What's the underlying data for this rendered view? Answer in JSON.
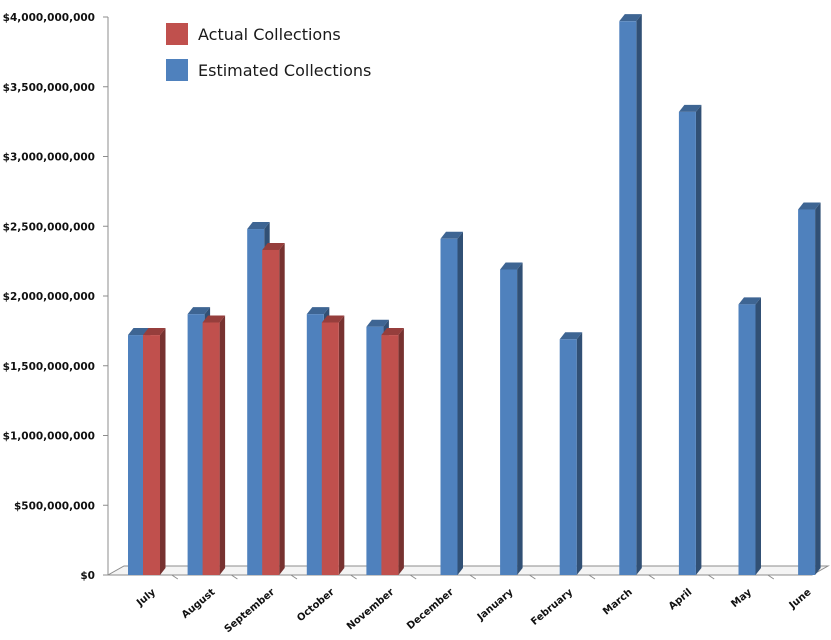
{
  "chart_data": {
    "type": "bar",
    "title": "",
    "xlabel": "",
    "ylabel": "",
    "categories": [
      "July",
      "August",
      "September",
      "October",
      "November",
      "December",
      "January",
      "February",
      "March",
      "April",
      "May",
      "June"
    ],
    "series": [
      {
        "name": "Estimated Collections",
        "color": "#4F81BD",
        "values": [
          1720000000,
          1870000000,
          2480000000,
          1870000000,
          1780000000,
          2410000000,
          2190000000,
          1690000000,
          3970000000,
          3320000000,
          1940000000,
          2620000000
        ]
      },
      {
        "name": "Actual Collections",
        "color": "#C0504D",
        "values": [
          1720000000,
          1810000000,
          2330000000,
          1810000000,
          1720000000,
          null,
          null,
          null,
          null,
          null,
          null,
          null
        ]
      }
    ],
    "ylim": [
      0,
      4000000000
    ],
    "yticks": [
      0,
      500000000,
      1000000000,
      1500000000,
      2000000000,
      2500000000,
      3000000000,
      3500000000,
      4000000000
    ],
    "ytick_labels": [
      "$0",
      "$500,000,000",
      "$1,000,000,000",
      "$1,500,000,000",
      "$2,000,000,000",
      "$2,500,000,000",
      "$3,000,000,000",
      "$3,500,000,000",
      "$4,000,000,000"
    ],
    "grid": false,
    "legend": {
      "position": "top-left",
      "entries": [
        {
          "label": "Actual Collections",
          "color": "#C0504D"
        },
        {
          "label": "Estimated Collections",
          "color": "#4F81BD"
        }
      ]
    }
  }
}
